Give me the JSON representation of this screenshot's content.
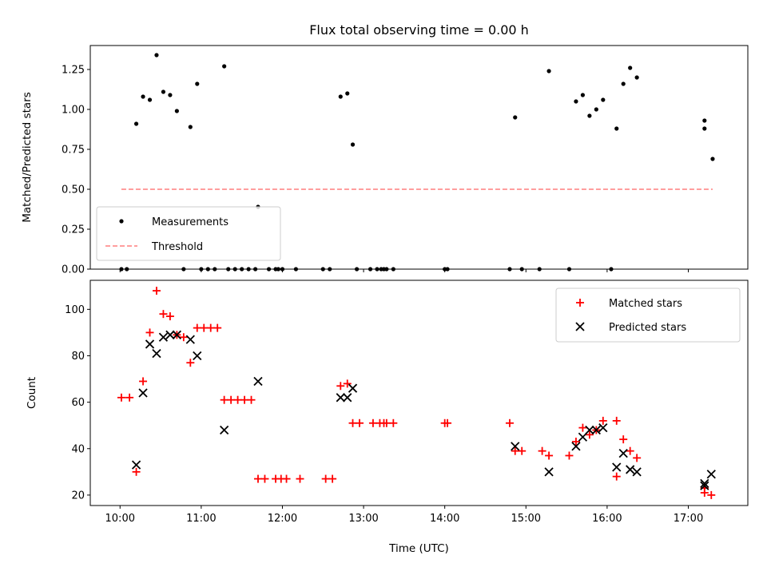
{
  "chart_data": [
    {
      "type": "scatter",
      "title": "Flux total observing time = 0.00 h",
      "xlabel": "",
      "ylabel": "Matched/Predicted stars",
      "ylim": [
        0.0,
        1.4
      ],
      "yticks": [
        "0.00",
        "0.25",
        "0.50",
        "0.75",
        "1.00",
        "1.25"
      ],
      "legend_position": "lower-left",
      "series": [
        {
          "name": "Measurements",
          "color": "#000000",
          "marker": "dot",
          "points": [
            [
              "10:01",
              0
            ],
            [
              "10:05",
              0
            ],
            [
              "10:12",
              0.91
            ],
            [
              "10:17",
              1.08
            ],
            [
              "10:22",
              1.06
            ],
            [
              "10:27",
              1.34
            ],
            [
              "10:32",
              1.11
            ],
            [
              "10:37",
              1.09
            ],
            [
              "10:42",
              0.99
            ],
            [
              "10:47",
              0
            ],
            [
              "10:52",
              0.89
            ],
            [
              "10:57",
              1.16
            ],
            [
              "11:00",
              0
            ],
            [
              "11:05",
              0
            ],
            [
              "11:10",
              0
            ],
            [
              "11:17",
              1.27
            ],
            [
              "11:20",
              0
            ],
            [
              "11:25",
              0
            ],
            [
              "11:30",
              0
            ],
            [
              "11:35",
              0
            ],
            [
              "11:40",
              0
            ],
            [
              "11:42",
              0.39
            ],
            [
              "11:50",
              0
            ],
            [
              "11:55",
              0
            ],
            [
              "11:57",
              0
            ],
            [
              "12:00",
              0
            ],
            [
              "12:10",
              0
            ],
            [
              "12:30",
              0
            ],
            [
              "12:35",
              0
            ],
            [
              "12:43",
              1.08
            ],
            [
              "12:48",
              1.1
            ],
            [
              "12:52",
              0.78
            ],
            [
              "12:55",
              0
            ],
            [
              "13:05",
              0
            ],
            [
              "13:10",
              0
            ],
            [
              "13:13",
              0
            ],
            [
              "13:15",
              0
            ],
            [
              "13:17",
              0
            ],
            [
              "13:22",
              0
            ],
            [
              "14:00",
              0
            ],
            [
              "14:02",
              0
            ],
            [
              "14:48",
              0
            ],
            [
              "14:52",
              0.95
            ],
            [
              "14:57",
              0
            ],
            [
              "15:10",
              0
            ],
            [
              "15:17",
              1.24
            ],
            [
              "15:32",
              0
            ],
            [
              "15:37",
              1.05
            ],
            [
              "15:42",
              1.09
            ],
            [
              "15:47",
              0.96
            ],
            [
              "15:52",
              1.0
            ],
            [
              "15:57",
              1.06
            ],
            [
              "16:03",
              0
            ],
            [
              "16:07",
              0.88
            ],
            [
              "16:12",
              1.16
            ],
            [
              "16:17",
              1.26
            ],
            [
              "16:22",
              1.2
            ],
            [
              "17:12",
              0.93
            ],
            [
              "17:12",
              0.88
            ],
            [
              "17:18",
              0.69
            ]
          ]
        },
        {
          "name": "Threshold",
          "color": "#ff7f7f",
          "style": "dashed",
          "y": 0.5,
          "x_range": [
            "10:01",
            "17:18"
          ]
        }
      ]
    },
    {
      "type": "scatter",
      "title": "",
      "xlabel": "Time (UTC)",
      "ylabel": "Count",
      "ylim": [
        15.5,
        112.5
      ],
      "yticks": [
        "20",
        "40",
        "60",
        "80",
        "100"
      ],
      "xlim": [
        "09:38",
        "17:44"
      ],
      "xticks": [
        "10:00",
        "11:00",
        "12:00",
        "13:00",
        "14:00",
        "15:00",
        "16:00",
        "17:00"
      ],
      "legend_position": "top-right",
      "series": [
        {
          "name": "Matched stars",
          "color": "#ff0000",
          "marker": "plus",
          "points": [
            [
              "10:01",
              62
            ],
            [
              "10:07",
              62
            ],
            [
              "10:12",
              30
            ],
            [
              "10:17",
              69
            ],
            [
              "10:22",
              90
            ],
            [
              "10:27",
              108
            ],
            [
              "10:32",
              98
            ],
            [
              "10:37",
              97
            ],
            [
              "10:42",
              89
            ],
            [
              "10:47",
              88
            ],
            [
              "10:52",
              77
            ],
            [
              "10:57",
              92
            ],
            [
              "11:02",
              92
            ],
            [
              "11:07",
              92
            ],
            [
              "11:12",
              92
            ],
            [
              "11:17",
              61
            ],
            [
              "11:22",
              61
            ],
            [
              "11:27",
              61
            ],
            [
              "11:32",
              61
            ],
            [
              "11:37",
              61
            ],
            [
              "11:42",
              27
            ],
            [
              "11:47",
              27
            ],
            [
              "11:55",
              27
            ],
            [
              "11:59",
              27
            ],
            [
              "12:03",
              27
            ],
            [
              "12:13",
              27
            ],
            [
              "12:32",
              27
            ],
            [
              "12:37",
              27
            ],
            [
              "12:43",
              67
            ],
            [
              "12:48",
              68
            ],
            [
              "12:52",
              51
            ],
            [
              "12:57",
              51
            ],
            [
              "13:07",
              51
            ],
            [
              "13:12",
              51
            ],
            [
              "13:15",
              51
            ],
            [
              "13:17",
              51
            ],
            [
              "13:22",
              51
            ],
            [
              "14:00",
              51
            ],
            [
              "14:02",
              51
            ],
            [
              "14:48",
              51
            ],
            [
              "14:52",
              39
            ],
            [
              "14:57",
              39
            ],
            [
              "15:12",
              39
            ],
            [
              "15:17",
              37
            ],
            [
              "15:32",
              37
            ],
            [
              "15:37",
              43
            ],
            [
              "15:42",
              49
            ],
            [
              "15:47",
              46
            ],
            [
              "15:52",
              48
            ],
            [
              "15:57",
              52
            ],
            [
              "16:07",
              52
            ],
            [
              "16:07",
              28
            ],
            [
              "16:12",
              44
            ],
            [
              "16:17",
              39
            ],
            [
              "16:22",
              36
            ],
            [
              "17:12",
              21
            ],
            [
              "17:12",
              23
            ],
            [
              "17:17",
              20
            ]
          ]
        },
        {
          "name": "Predicted stars",
          "color": "#000000",
          "marker": "x",
          "points": [
            [
              "10:12",
              33
            ],
            [
              "10:17",
              64
            ],
            [
              "10:22",
              85
            ],
            [
              "10:27",
              81
            ],
            [
              "10:32",
              88
            ],
            [
              "10:37",
              89
            ],
            [
              "10:42",
              89
            ],
            [
              "10:52",
              87
            ],
            [
              "10:57",
              80
            ],
            [
              "11:17",
              48
            ],
            [
              "11:42",
              69
            ],
            [
              "12:43",
              62
            ],
            [
              "12:48",
              62
            ],
            [
              "12:52",
              66
            ],
            [
              "14:52",
              41
            ],
            [
              "15:17",
              30
            ],
            [
              "15:37",
              41
            ],
            [
              "15:42",
              45
            ],
            [
              "15:47",
              48
            ],
            [
              "15:52",
              48
            ],
            [
              "15:57",
              49
            ],
            [
              "16:07",
              32
            ],
            [
              "16:12",
              38
            ],
            [
              "16:17",
              31
            ],
            [
              "16:22",
              30
            ],
            [
              "17:12",
              24
            ],
            [
              "17:12",
              25
            ],
            [
              "17:17",
              29
            ]
          ]
        }
      ]
    }
  ]
}
